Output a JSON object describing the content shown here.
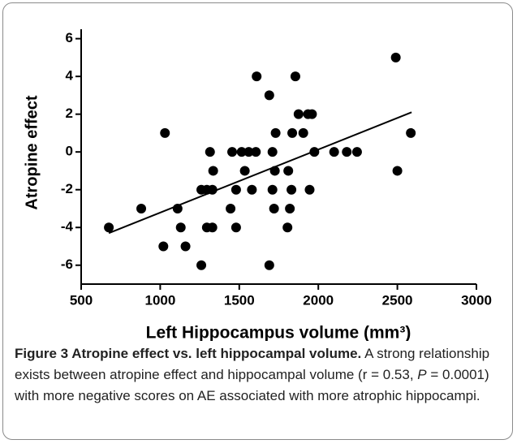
{
  "chart_data": {
    "type": "scatter",
    "xlabel": "Left Hippocampus volume (mm³)",
    "ylabel": "Atropine effect",
    "xlim": [
      500,
      3000
    ],
    "xticks": [
      500,
      1000,
      1500,
      2000,
      2500,
      3000
    ],
    "ylim": [
      -7,
      6.5
    ],
    "yticks": [
      -6,
      -4,
      -2,
      0,
      2,
      4,
      6
    ],
    "series": [
      {
        "color": "#000000",
        "x": [
          675,
          880,
          1030,
          1020,
          1110,
          1130,
          1160,
          1260,
          1260,
          1295,
          1295,
          1315,
          1330,
          1335,
          1330,
          1445,
          1455,
          1480,
          1480,
          1515,
          1535,
          1560,
          1580,
          1605,
          1610,
          1690,
          1690,
          1710,
          1710,
          1720,
          1725,
          1730,
          1810,
          1805,
          1820,
          1830,
          1835,
          1855,
          1875,
          1905,
          1935,
          1960,
          1945,
          1975,
          2100,
          2180,
          2245,
          2490,
          2500,
          2585
        ],
        "values": [
          -4,
          -3,
          1,
          -5,
          -3,
          -4,
          -5,
          -6,
          -2,
          -2,
          -4,
          0,
          -2,
          -1,
          -4,
          -3,
          0,
          -2,
          -4,
          0,
          -1,
          0,
          -2,
          0,
          4,
          3,
          -6,
          0,
          -2,
          -3,
          -1,
          1,
          -1,
          -4,
          -3,
          -2,
          1,
          4,
          2,
          1,
          2,
          2,
          -2,
          0,
          0,
          0,
          0,
          5,
          -1,
          1
        ]
      }
    ],
    "fit_line": {
      "color": "#000000",
      "x": [
        675,
        2590
      ],
      "values": [
        -4.3,
        2.1
      ]
    },
    "caption": {
      "title": "Figure 3 Atropine effect vs. left hippocampal volume.",
      "text": [
        " A strong relationship exists between atropine effect and hippocampal volume (r = 0.53, ",
        "P",
        " = 0.0001) with more negative scores on AE associated with more atrophic hippocampi."
      ]
    }
  }
}
